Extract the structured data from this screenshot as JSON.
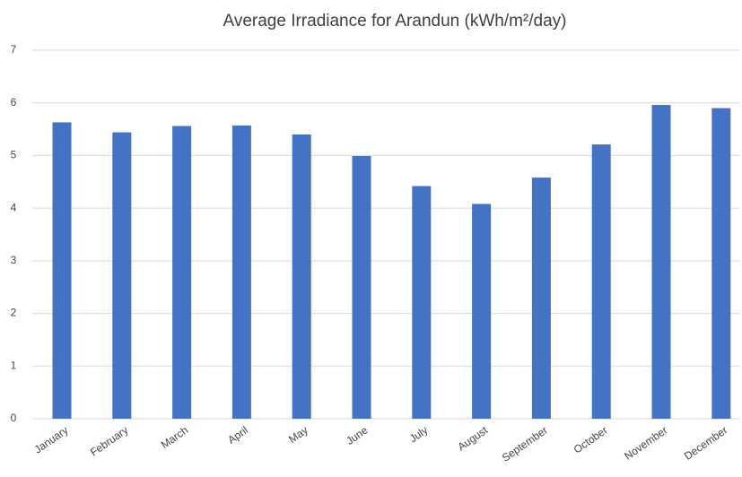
{
  "chart_data": {
    "type": "bar",
    "title": "Average Irradiance for Arandun (kWh/m²/day)",
    "categories": [
      "January",
      "February",
      "March",
      "April",
      "May",
      "June",
      "July",
      "August",
      "September",
      "October",
      "November",
      "December"
    ],
    "values": [
      5.63,
      5.44,
      5.56,
      5.57,
      5.4,
      4.99,
      4.42,
      4.08,
      4.58,
      5.21,
      5.96,
      5.9
    ],
    "color": "#4472c4",
    "ylim": [
      0,
      7
    ],
    "yticks": [
      0,
      1,
      2,
      3,
      4,
      5,
      6,
      7
    ],
    "grid": true
  }
}
